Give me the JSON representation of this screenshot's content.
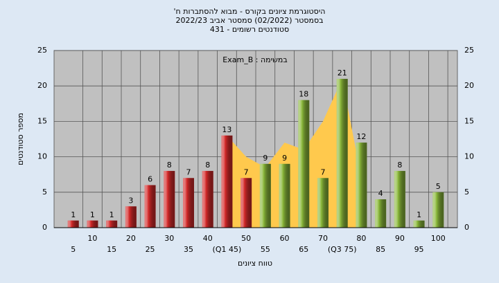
{
  "chart_data": {
    "type": "bar",
    "title": [
      "היסטוגרמת ציונים בקורס - מבוא להסתברות ח'",
      "בסמסטר  (02/2022)  סמסטר אביב 2022/23",
      "סטודנטים רשומים - 431"
    ],
    "annotation": "במשימה : Exam_B",
    "x_label": "טווח ציונים",
    "y_label": "מספר סטודנטים",
    "categories": [
      "5",
      "10",
      "15",
      "20",
      "25",
      "30",
      "35",
      "40",
      "(Q1 45)",
      "50",
      "55",
      "60",
      "65",
      "70",
      "(Q3 75)",
      "80",
      "85",
      "90",
      "95",
      "100"
    ],
    "values": [
      1,
      1,
      1,
      3,
      6,
      8,
      7,
      8,
      13,
      7,
      9,
      9,
      18,
      7,
      21,
      12,
      4,
      8,
      1,
      5
    ],
    "colors": [
      "#d42a2a",
      "#d42a2a",
      "#d42a2a",
      "#d42a2a",
      "#d42a2a",
      "#d42a2a",
      "#d42a2a",
      "#d42a2a",
      "#d42a2a",
      "#d42a2a",
      "#8ab83a",
      "#8ab83a",
      "#8ab83a",
      "#8ab83a",
      "#8ab83a",
      "#8ab83a",
      "#8ab83a",
      "#8ab83a",
      "#8ab83a",
      "#8ab83a"
    ],
    "area": {
      "color": "#ffc94d",
      "values": [
        null,
        null,
        null,
        null,
        null,
        null,
        null,
        null,
        13,
        10,
        8.5,
        12,
        11,
        15,
        21,
        7,
        null,
        null,
        null,
        null
      ]
    },
    "ylim": [
      0,
      25
    ],
    "yticks": [
      0,
      5,
      10,
      15,
      20,
      25
    ],
    "grid": true
  }
}
